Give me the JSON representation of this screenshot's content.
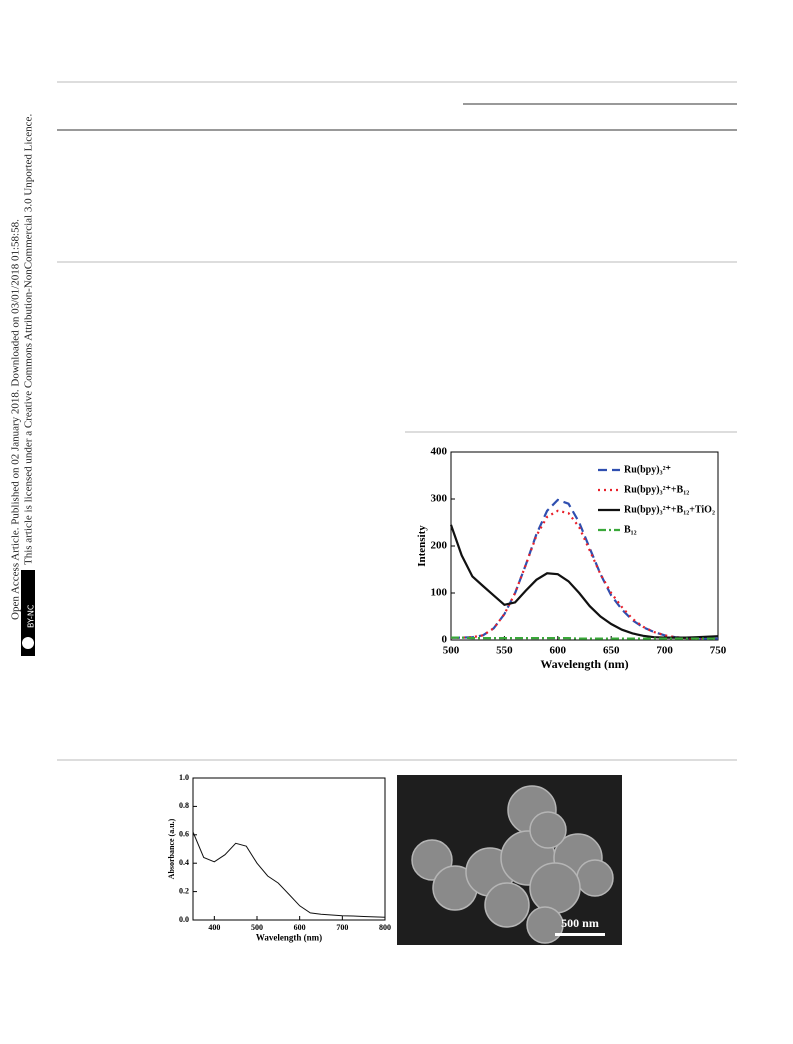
{
  "sidebar": {
    "line1": "Open Access Article. Published on 02 January 2018. Downloaded on 03/01/2018 01:58:58.",
    "line2": "This article is licensed under a Creative Commons Attribution-NonCommercial 3.0 Unported Licence.",
    "badge": "BY-NC"
  },
  "chart_data": [
    {
      "type": "line",
      "xlabel": "Wavelength (nm)",
      "ylabel": "Intensity",
      "x": [
        500,
        510,
        520,
        530,
        540,
        550,
        560,
        570,
        580,
        590,
        600,
        610,
        620,
        630,
        640,
        650,
        660,
        670,
        680,
        690,
        700,
        710,
        720,
        730,
        740,
        750
      ],
      "xlim": [
        500,
        750
      ],
      "xticks": [
        500,
        550,
        600,
        650,
        700,
        750
      ],
      "ylim": [
        0,
        400
      ],
      "yticks": [
        0,
        100,
        200,
        300,
        400
      ],
      "series": [
        {
          "name": "Ru(bpy)₃²⁺",
          "color": "#2f4fb0",
          "style": "dashed",
          "values": [
            5,
            5,
            6,
            10,
            25,
            55,
            100,
            160,
            225,
            275,
            298,
            290,
            250,
            195,
            140,
            95,
            65,
            42,
            27,
            17,
            10,
            6,
            4,
            3,
            3,
            3
          ]
        },
        {
          "name": "Ru(bpy)₃²⁺+B₁₂",
          "color": "#e8202a",
          "style": "dotted",
          "values": [
            5,
            5,
            6,
            10,
            25,
            55,
            100,
            160,
            222,
            262,
            275,
            270,
            240,
            190,
            140,
            100,
            70,
            45,
            28,
            17,
            10,
            6,
            4,
            3,
            3,
            3
          ]
        },
        {
          "name": "Ru(bpy)₃²⁺+B₁₂+TiO₂",
          "color": "#111111",
          "style": "solid",
          "values": [
            245,
            180,
            135,
            115,
            95,
            75,
            80,
            105,
            128,
            142,
            140,
            125,
            100,
            72,
            50,
            34,
            22,
            14,
            9,
            6,
            5,
            5,
            5,
            6,
            7,
            8
          ]
        },
        {
          "name": "B₁₂",
          "color": "#3aa83a",
          "style": "dashdot",
          "values": [
            5,
            5,
            4,
            4,
            4,
            4,
            4,
            4,
            4,
            4,
            4,
            4,
            3,
            3,
            3,
            3,
            3,
            3,
            3,
            3,
            3,
            3,
            3,
            3,
            3,
            3
          ]
        }
      ]
    },
    {
      "type": "line",
      "xlabel": "Wavelength (nm)",
      "ylabel": "Absorbance (a.u.)",
      "x": [
        350,
        375,
        400,
        425,
        450,
        475,
        500,
        525,
        550,
        575,
        600,
        625,
        650,
        675,
        700,
        725,
        750,
        775,
        800
      ],
      "xlim": [
        350,
        800
      ],
      "xticks": [
        400,
        500,
        600,
        700,
        800
      ],
      "ylim": [
        0,
        1
      ],
      "yticks": [
        {
          "value": 0,
          "label": "0.0"
        },
        0.2,
        0.4,
        0.6,
        0.8,
        {
          "value": 1,
          "label": "1.0"
        }
      ],
      "series": [
        {
          "color": "#111111",
          "style": "solid",
          "values": [
            0.62,
            0.44,
            0.41,
            0.46,
            0.54,
            0.52,
            0.4,
            0.31,
            0.26,
            0.18,
            0.1,
            0.05,
            0.04,
            0.035,
            0.03,
            0.028,
            0.025,
            0.022,
            0.02
          ]
        }
      ]
    }
  ],
  "sem": {
    "scale_label": "500 nm"
  }
}
